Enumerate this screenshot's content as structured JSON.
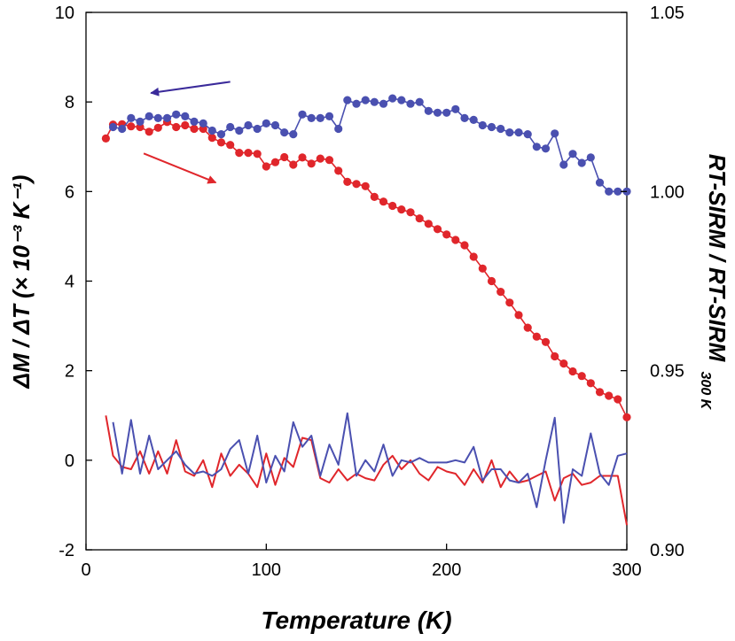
{
  "chart_data": {
    "type": "line",
    "x": {
      "label": "Temperature (K)",
      "range": [
        0,
        300
      ],
      "ticks": [
        "0",
        "100",
        "200",
        "300"
      ]
    },
    "y_left": {
      "label": "ΔM / ΔT (× 10⁻³ K⁻¹)",
      "range": [
        -2,
        10
      ],
      "ticks": [
        "-2",
        "0",
        "2",
        "4",
        "6",
        "8",
        "10"
      ]
    },
    "y_right": {
      "label": "RT-SIRM / RT-SIRM",
      "label_subscript": "300 K",
      "range": [
        0.9,
        1.05
      ],
      "ticks": [
        "0.90",
        "0.95",
        "1.00",
        "1.05"
      ]
    },
    "series": [
      {
        "axis": "right",
        "style": "line-markers",
        "color": "#4a50b0",
        "x": [
          15,
          20,
          25,
          30,
          35,
          40,
          45,
          50,
          55,
          60,
          65,
          70,
          75,
          80,
          85,
          90,
          95,
          100,
          105,
          110,
          115,
          120,
          125,
          130,
          135,
          140,
          145,
          150,
          155,
          160,
          165,
          170,
          175,
          180,
          185,
          190,
          195,
          200,
          205,
          210,
          215,
          220,
          225,
          230,
          235,
          240,
          245,
          250,
          255,
          260,
          265,
          270,
          275,
          280,
          285,
          290,
          295,
          300
        ],
        "y": [
          1.018,
          1.0175,
          1.0205,
          1.0195,
          1.021,
          1.0205,
          1.0205,
          1.0215,
          1.021,
          1.0195,
          1.019,
          1.017,
          1.016,
          1.018,
          1.017,
          1.0185,
          1.0175,
          1.019,
          1.0185,
          1.0165,
          1.016,
          1.0215,
          1.0205,
          1.0205,
          1.021,
          1.0175,
          1.0255,
          1.0245,
          1.0255,
          1.025,
          1.0245,
          1.026,
          1.0255,
          1.0245,
          1.025,
          1.0225,
          1.022,
          1.022,
          1.023,
          1.0205,
          1.02,
          1.0185,
          1.018,
          1.0175,
          1.0165,
          1.0165,
          1.016,
          1.0125,
          1.012,
          1.0162,
          1.0075,
          1.0105,
          1.008,
          1.0095,
          1.0025,
          1.0,
          1.0,
          1.0
        ]
      },
      {
        "axis": "right",
        "style": "line-markers",
        "color": "#e0262b",
        "x": [
          11,
          15,
          20,
          25,
          30,
          35,
          40,
          45,
          50,
          55,
          60,
          65,
          70,
          75,
          80,
          85,
          90,
          95,
          100,
          105,
          110,
          115,
          120,
          125,
          130,
          135,
          140,
          145,
          150,
          155,
          160,
          165,
          170,
          175,
          180,
          185,
          190,
          195,
          200,
          205,
          210,
          215,
          220,
          225,
          230,
          235,
          240,
          245,
          250,
          255,
          260,
          265,
          270,
          275,
          280,
          285,
          290,
          295,
          300
        ],
        "y": [
          1.0148,
          1.0187,
          1.0188,
          1.0182,
          1.018,
          1.0167,
          1.0178,
          1.0194,
          1.018,
          1.0185,
          1.0175,
          1.0175,
          1.015,
          1.0137,
          1.013,
          1.0108,
          1.0108,
          1.0105,
          1.007,
          1.0082,
          1.0096,
          1.0075,
          1.0095,
          1.0078,
          1.0092,
          1.0088,
          1.0058,
          1.0027,
          1.0021,
          1.0015,
          0.9985,
          0.9972,
          0.996,
          0.995,
          0.9942,
          0.9925,
          0.991,
          0.9895,
          0.988,
          0.9865,
          0.985,
          0.9818,
          0.9785,
          0.975,
          0.972,
          0.969,
          0.9655,
          0.962,
          0.9595,
          0.958,
          0.954,
          0.952,
          0.9498,
          0.9485,
          0.9465,
          0.944,
          0.943,
          0.942,
          0.937
        ]
      },
      {
        "axis": "left",
        "style": "line",
        "color": "#4a50b0",
        "x": [
          15,
          20,
          25,
          30,
          35,
          40,
          45,
          50,
          55,
          60,
          65,
          70,
          75,
          80,
          85,
          90,
          95,
          100,
          105,
          110,
          115,
          120,
          125,
          130,
          135,
          140,
          145,
          150,
          155,
          160,
          165,
          170,
          175,
          180,
          185,
          190,
          195,
          200,
          205,
          210,
          215,
          220,
          225,
          230,
          235,
          240,
          245,
          250,
          255,
          260,
          265,
          270,
          275,
          280,
          285,
          290,
          295,
          300
        ],
        "y": [
          0.85,
          -0.3,
          0.9,
          -0.3,
          0.55,
          -0.2,
          0.0,
          0.2,
          -0.1,
          -0.3,
          -0.25,
          -0.35,
          -0.2,
          0.25,
          0.45,
          -0.3,
          0.55,
          -0.5,
          0.1,
          -0.25,
          0.85,
          0.3,
          0.55,
          -0.35,
          0.35,
          -0.1,
          1.05,
          -0.35,
          0.0,
          -0.25,
          0.35,
          -0.35,
          0.0,
          -0.05,
          0.05,
          -0.05,
          -0.05,
          -0.05,
          0.0,
          -0.05,
          0.3,
          -0.45,
          -0.2,
          -0.2,
          -0.45,
          -0.5,
          -0.3,
          -1.05,
          0.0,
          0.95,
          -1.4,
          -0.2,
          -0.35,
          0.6,
          -0.3,
          -0.55,
          0.1,
          0.15
        ]
      },
      {
        "axis": "left",
        "style": "line",
        "color": "#e0262b",
        "x": [
          11,
          15,
          20,
          25,
          30,
          35,
          40,
          45,
          50,
          55,
          60,
          65,
          70,
          75,
          80,
          85,
          90,
          95,
          100,
          105,
          110,
          115,
          120,
          125,
          130,
          135,
          140,
          145,
          150,
          155,
          160,
          165,
          170,
          175,
          180,
          185,
          190,
          195,
          200,
          205,
          210,
          215,
          220,
          225,
          230,
          235,
          240,
          245,
          250,
          255,
          260,
          265,
          270,
          275,
          280,
          285,
          290,
          295,
          300
        ],
        "y": [
          1.0,
          0.1,
          -0.15,
          -0.2,
          0.2,
          -0.3,
          0.2,
          -0.3,
          0.45,
          -0.25,
          -0.35,
          0.0,
          -0.6,
          0.15,
          -0.35,
          -0.1,
          -0.3,
          -0.6,
          0.15,
          -0.55,
          0.05,
          -0.15,
          0.5,
          0.45,
          -0.4,
          -0.5,
          -0.2,
          -0.45,
          -0.3,
          -0.4,
          -0.45,
          -0.1,
          0.1,
          -0.2,
          0.0,
          -0.3,
          -0.45,
          -0.15,
          -0.25,
          -0.3,
          -0.55,
          -0.2,
          -0.5,
          0.0,
          -0.6,
          -0.25,
          -0.5,
          -0.45,
          -0.35,
          -0.25,
          -0.9,
          -0.4,
          -0.3,
          -0.55,
          -0.5,
          -0.35,
          -0.35,
          -0.35,
          -1.45
        ]
      }
    ],
    "annotations": [
      {
        "type": "arrow",
        "color": "#3a2a9a",
        "direction": "left",
        "from": [
          80,
          8.45
        ],
        "to": [
          36,
          8.2
        ]
      },
      {
        "type": "arrow",
        "color": "#e0262b",
        "direction": "right",
        "from": [
          32,
          6.85
        ],
        "to": [
          72,
          6.2
        ]
      }
    ],
    "grid": false,
    "legend": "none"
  }
}
